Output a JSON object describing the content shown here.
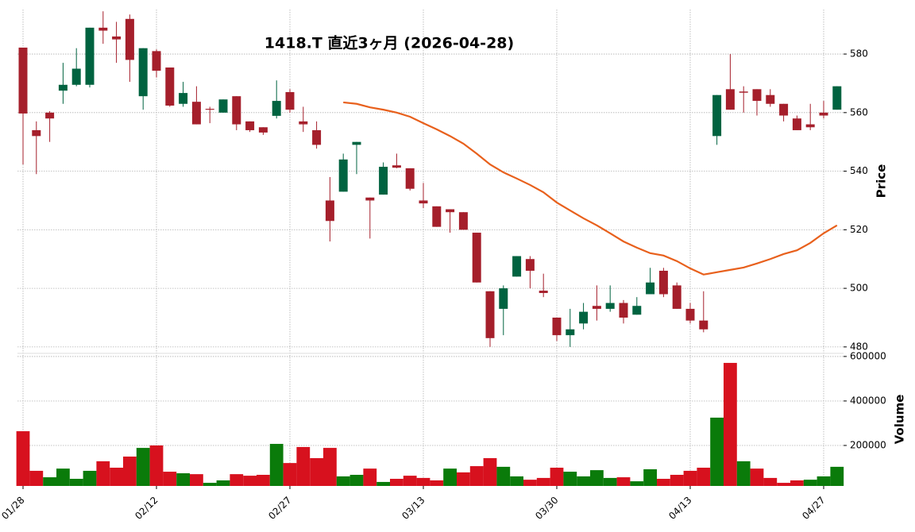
{
  "chart_data": {
    "type": "candlestick",
    "title": "1418.T  直近3ヶ月  (2026-04-28)",
    "categories": [
      "01/28",
      null,
      null,
      null,
      null,
      null,
      null,
      null,
      null,
      null,
      "02/12",
      null,
      null,
      null,
      null,
      null,
      null,
      null,
      null,
      null,
      "02/27",
      null,
      null,
      null,
      null,
      null,
      null,
      null,
      null,
      null,
      "03/13",
      null,
      null,
      null,
      null,
      null,
      null,
      null,
      null,
      null,
      "03/30",
      null,
      null,
      null,
      null,
      null,
      null,
      null,
      null,
      null,
      "04/13",
      null,
      null,
      null,
      null,
      null,
      null,
      null,
      null,
      null,
      "04/27",
      null
    ],
    "open": [
      582.2,
      554,
      560,
      567.5,
      569.5,
      569.5,
      589,
      586,
      592,
      565.6,
      581,
      575.4,
      563,
      563.7,
      561.3,
      560,
      565.6,
      557,
      555,
      558.9,
      567,
      557,
      554,
      530,
      533,
      549,
      531,
      532,
      542,
      541,
      530,
      528,
      527,
      526,
      519,
      499,
      493,
      504,
      510,
      499.2,
      490,
      484,
      488,
      494,
      493,
      495,
      491,
      498,
      506,
      501,
      493,
      489,
      552,
      568,
      567.2,
      568,
      566,
      563,
      558,
      556,
      560,
      561
    ],
    "high": [
      582.2,
      557,
      560.5,
      577,
      582,
      589,
      594.6,
      591,
      593.5,
      582,
      581.6,
      575.4,
      570.5,
      569,
      562,
      564.5,
      565.6,
      557,
      555,
      571,
      568,
      562,
      557,
      538,
      546,
      550,
      531,
      543,
      546,
      541,
      536,
      528,
      527,
      526,
      519,
      499,
      501,
      511,
      511,
      505,
      490,
      493,
      495,
      501,
      501,
      496,
      497,
      507,
      507,
      502,
      495,
      499,
      566,
      580,
      569,
      568,
      568,
      563,
      559,
      563,
      564,
      569
    ],
    "low": [
      542.3,
      539,
      550,
      563,
      569,
      568.6,
      583.5,
      577,
      570.5,
      561,
      572,
      562,
      562,
      556,
      556.4,
      560,
      554,
      553.4,
      552.4,
      558,
      560,
      553.4,
      547.7,
      516,
      533,
      539,
      517,
      532,
      541,
      533.4,
      527.4,
      521,
      519,
      520,
      502,
      480,
      484,
      504,
      500,
      497,
      482,
      480,
      486,
      489,
      492,
      488,
      491,
      498,
      497,
      493,
      488,
      485,
      549,
      561,
      560,
      559,
      562,
      557,
      554,
      554,
      558,
      561
    ],
    "close": [
      559.7,
      552,
      558,
      569.5,
      575,
      589,
      588,
      585,
      578,
      582,
      574.3,
      562.4,
      566.7,
      556,
      561,
      564.5,
      556,
      554,
      553.2,
      564,
      561,
      556,
      549,
      523,
      544,
      550,
      530,
      541.5,
      541.2,
      534,
      529,
      521,
      526,
      520,
      502,
      483,
      500,
      511,
      506,
      498.4,
      484,
      486,
      492,
      493,
      495,
      490,
      494,
      502,
      498,
      493,
      489,
      486,
      566,
      561,
      566.8,
      564,
      563,
      559,
      554,
      555,
      559,
      569
    ],
    "up_color": "#006340",
    "down_color": "#a51f2b",
    "moving_average": {
      "color": "#e8601c",
      "values": [
        null,
        null,
        null,
        null,
        null,
        null,
        null,
        null,
        null,
        null,
        null,
        null,
        null,
        null,
        null,
        null,
        null,
        null,
        null,
        null,
        null,
        null,
        null,
        null,
        563.5,
        563,
        561.8,
        561,
        560,
        558.6,
        556.4,
        554.3,
        552,
        549.4,
        546,
        542.3,
        539.6,
        537.5,
        535.3,
        532.8,
        529.3,
        526.6,
        523.9,
        521.5,
        518.8,
        516,
        513.9,
        512,
        511.2,
        509.3,
        506.8,
        504.7,
        505.5,
        506.3,
        507.1,
        508.5,
        510,
        511.7,
        513,
        515.5,
        518.8,
        521.5
      ]
    },
    "ylabel": "Price",
    "ylim": [
      477.8,
      595.2
    ],
    "yticks": [
      480,
      500,
      520,
      540,
      560,
      580
    ],
    "grid": true,
    "volume": {
      "ylabel": "Volume",
      "up_color": "#0a7b0a",
      "down_color": "#d7111e",
      "ylim": [
        18000,
        614000
      ],
      "yticks": [
        200000,
        400000,
        600000
      ],
      "values": [
        264000,
        86000,
        57000,
        96000,
        50000,
        86000,
        129000,
        100000,
        150000,
        189000,
        200000,
        82000,
        75000,
        71000,
        32000,
        43000,
        71000,
        64000,
        68000,
        207000,
        121000,
        193000,
        143000,
        189000,
        61000,
        68000,
        96000,
        36000,
        50000,
        64000,
        54000,
        43000,
        96000,
        79000,
        107000,
        143000,
        104000,
        61000,
        46000,
        54000,
        100000,
        82000,
        61000,
        89000,
        54000,
        57000,
        39000,
        93000,
        50000,
        68000,
        86000,
        100000,
        325000,
        571000,
        129000,
        96000,
        54000,
        32000,
        43000,
        46000,
        61000,
        104000
      ]
    }
  }
}
